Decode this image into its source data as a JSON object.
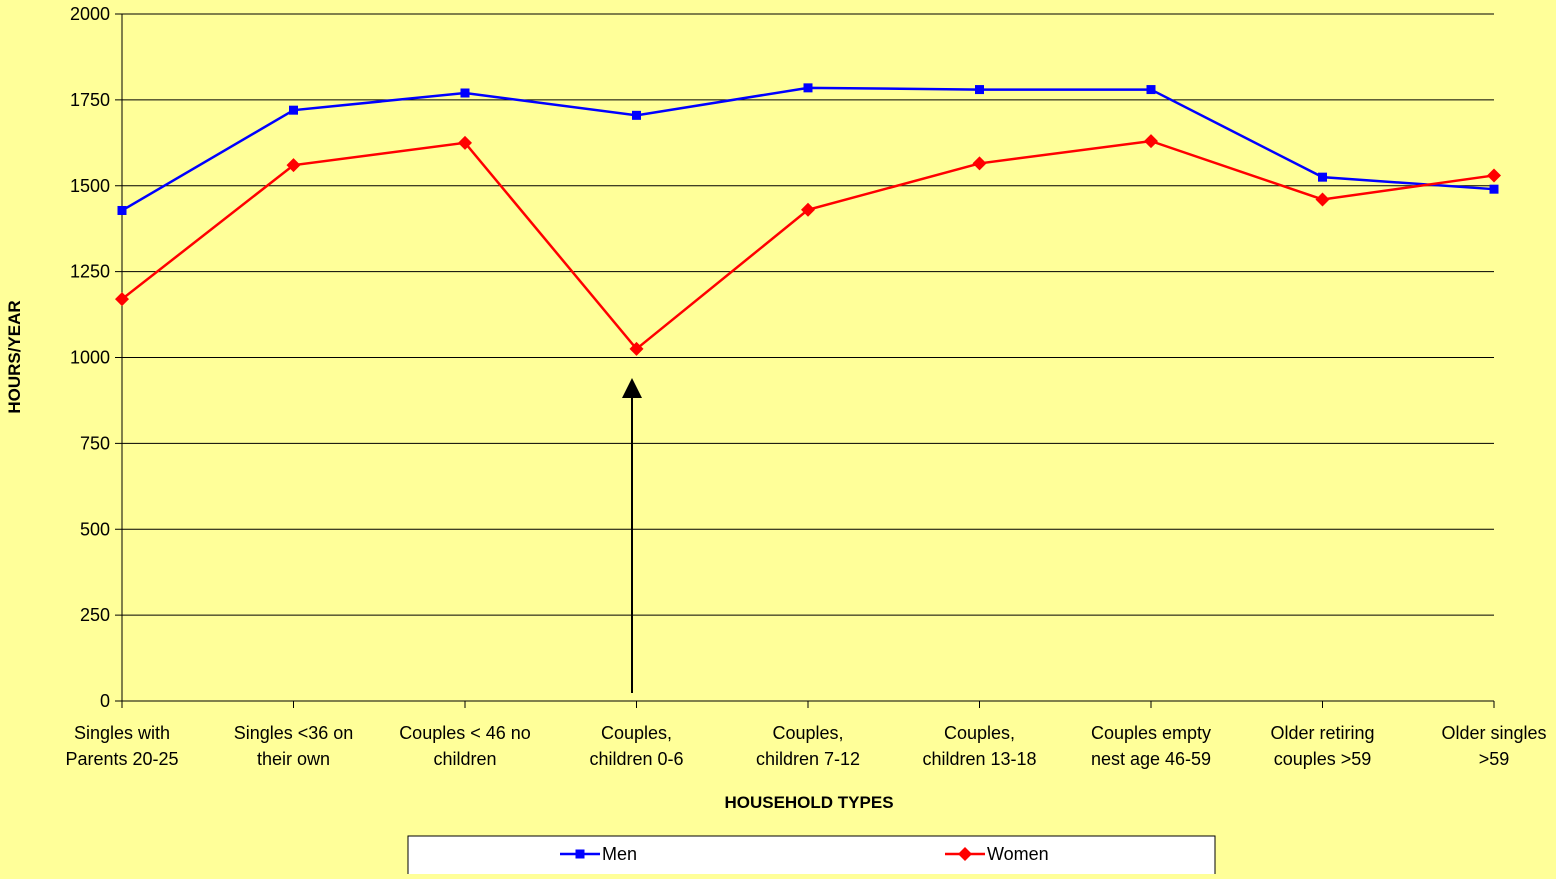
{
  "chart_data": {
    "type": "line",
    "x_label": "HOUSEHOLD TYPES",
    "y_label": "HOURS/YEAR",
    "categories": [
      "Singles with\nParents 20-25",
      "Singles  <36 on\ntheir own",
      "Couples < 46 no\nchildren",
      "Couples,\nchildren 0-6",
      "Couples,\nchildren 7-12",
      "Couples,\nchildren 13-18",
      "Couples empty\nnest age 46-59",
      "Older retiring\ncouples >59",
      "Older singles\n>59"
    ],
    "series": [
      {
        "name": "Men",
        "color": "#0000ff",
        "marker": "square",
        "values": [
          1428,
          1720,
          1770,
          1705,
          1785,
          1780,
          1780,
          1525,
          1490
        ]
      },
      {
        "name": "Women",
        "color": "#ff0000",
        "marker": "diamond",
        "values": [
          1170,
          1560,
          1625,
          1025,
          1430,
          1565,
          1630,
          1460,
          1530
        ]
      }
    ],
    "ylim": [
      0,
      2000
    ],
    "yticks": [
      0,
      250,
      500,
      750,
      1000,
      1250,
      1500,
      1750,
      2000
    ],
    "grid": true,
    "legend": "bottom"
  }
}
